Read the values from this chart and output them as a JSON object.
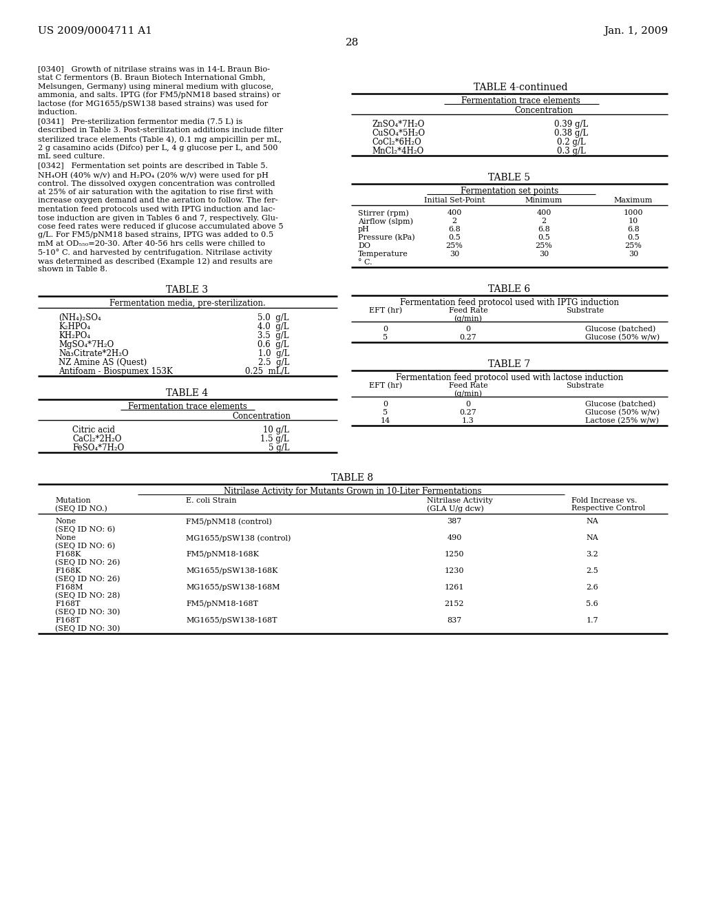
{
  "page_header_left": "US 2009/0004711 A1",
  "page_header_right": "Jan. 1, 2009",
  "page_number": "28",
  "background_color": "#ffffff",
  "text_color": "#000000",
  "paragraphs": [
    "[0340]   Growth of nitrilase strains was in 14-L Braun Bio-stat C fermentors (B. Braun Biotech International Gmbh, Melsungen, Germany) using mineral medium with glucose, ammonia, and salts. IPTG (for FM5/pNM18 based strains) or lactose (for MG1655/pSW138 based strains) was used for induction.",
    "[0341]   Pre-sterilization fermentor media (7.5 L) is described in Table 3. Post-sterilization additions include filter sterilized trace elements (Table 4), 0.1 mg ampicillin per mL, 2 g casamino acids (Difco) per L, 4 g glucose per L, and 500 mL seed culture.",
    "[0342]   Fermentation set points are described in Table 5. NH₄OH (40% w/v) and H₂PO₄ (20% w/v) were used for pH control. The dissolved oxygen concentration was controlled at 25% of air saturation with the agitation to rise first with increase oxygen demand and the aeration to follow. The fer-mentation feed protocols used with IPTG induction and lac-tose induction are given in Tables 6 and 7, respectively. Glu-cose feed rates were reduced if glucose accumulated above 5 g/L. For FM5/pNM18 based strains, IPTG was added to 0.5 mM at OD₅₅₀=20-30. After 40-56 hrs cells were chilled to 5-10° C. and harvested by centrifugation. Nitrilase activity was determined as described (Example 12) and results are shown in Table 8."
  ],
  "table3_title": "TABLE 3",
  "table3_subtitle": "Fermentation media, pre-sterilization.",
  "table3_rows": [
    [
      "(NH₄)₂SO₄",
      "5.0  g/L"
    ],
    [
      "K₂HPO₄",
      "4.0  g/L"
    ],
    [
      "KH₂PO₄",
      "3.5  g/L"
    ],
    [
      "MgSO₄*7H₂O",
      "0.6  g/L"
    ],
    [
      "Na₃Citrate*2H₂O",
      "1.0  g/L"
    ],
    [
      "NZ Amine AS (Quest)",
      "2.5  g/L"
    ],
    [
      "Antifoam - Biospumex 153K",
      "0.25  mL/L"
    ]
  ],
  "table4_title": "TABLE 4",
  "table4_subtitle": "Fermentation trace elements",
  "table4_col": "Concentration",
  "table4_rows": [
    [
      "Citric acid",
      "10 g/L"
    ],
    [
      "CaCl₂*2H₂O",
      "1.5 g/L"
    ],
    [
      "FeSO₄*7H₂O",
      "5 g/L"
    ]
  ],
  "table4cont_title": "TABLE 4-continued",
  "table4cont_subtitle": "Fermentation trace elements",
  "table4cont_col": "Concentration",
  "table4cont_rows": [
    [
      "ZnSO₄*7H₂O",
      "0.39 g/L"
    ],
    [
      "CuSO₄*5H₂O",
      "0.38 g/L"
    ],
    [
      "CoCl₂*6H₂O",
      "0.2 g/L"
    ],
    [
      "MnCl₂*4H₂O",
      "0.3 g/L"
    ]
  ],
  "table5_title": "TABLE 5",
  "table5_subtitle": "Fermentation set points",
  "table5_cols": [
    "",
    "Initial Set-Point",
    "Minimum",
    "Maximum"
  ],
  "table5_rows": [
    [
      "Stirrer (rpm)",
      "400",
      "400",
      "1000"
    ],
    [
      "Airflow (slpm)",
      "2",
      "2",
      "10"
    ],
    [
      "pH",
      "6.8",
      "6.8",
      "6.8"
    ],
    [
      "Pressure (kPa)",
      "0.5",
      "0.5",
      "0.5"
    ],
    [
      "DO",
      "25%",
      "25%",
      "25%"
    ],
    [
      "Temperature",
      "30",
      "30",
      "30"
    ],
    [
      "° C.",
      "",
      "",
      ""
    ]
  ],
  "table6_title": "TABLE 6",
  "table6_subtitle": "Fermentation feed protocol used with IPTG induction",
  "table6_cols": [
    "EFT (hr)",
    "Feed Rate\n(g/min)",
    "Substrate"
  ],
  "table6_rows": [
    [
      "0",
      "0",
      "Glucose (batched)"
    ],
    [
      "5",
      "0.27",
      "Glucose (50% w/w)"
    ]
  ],
  "table7_title": "TABLE 7",
  "table7_subtitle": "Fermentation feed protocol used with lactose induction",
  "table7_cols": [
    "EFT (hr)",
    "Feed Rate\n(g/min)",
    "Substrate"
  ],
  "table7_rows": [
    [
      "0",
      "0",
      "Glucose (batched)"
    ],
    [
      "5",
      "0.27",
      "Glucose (50% w/w)"
    ],
    [
      "14",
      "1.3",
      "Lactose (25% w/w)"
    ]
  ],
  "table8_title": "TABLE 8",
  "table8_subtitle": "Nitrilase Activity for Mutants Grown in 10-Liter Fermentations",
  "table8_cols": [
    "Mutation\n(SEQ ID NO.)",
    "E. coli Strain",
    "Nitrilase Activity\n(GLA U/g dcw)",
    "Fold Increase vs.\nRespective Control"
  ],
  "table8_rows": [
    [
      "None\n(SEQ ID NO: 6)",
      "FM5/pNM18 (control)",
      "387",
      "NA"
    ],
    [
      "None\n(SEQ ID NO: 6)",
      "MG1655/pSW138 (control)",
      "490",
      "NA"
    ],
    [
      "F168K\n(SEQ ID NO: 26)",
      "FM5/pNM18-168K",
      "1250",
      "3.2"
    ],
    [
      "F168K\n(SEQ ID NO: 26)",
      "MG1655/pSW138-168K",
      "1230",
      "2.5"
    ],
    [
      "F168M\n(SEQ ID NO: 28)",
      "MG1655/pSW138-168M",
      "1261",
      "2.6"
    ],
    [
      "F168T\n(SEQ ID NO: 30)",
      "FM5/pNM18-168T",
      "2152",
      "5.6"
    ],
    [
      "F168T\n(SEQ ID NO: 30)",
      "MG1655/pSW138-168T",
      "837",
      "1.7"
    ]
  ]
}
